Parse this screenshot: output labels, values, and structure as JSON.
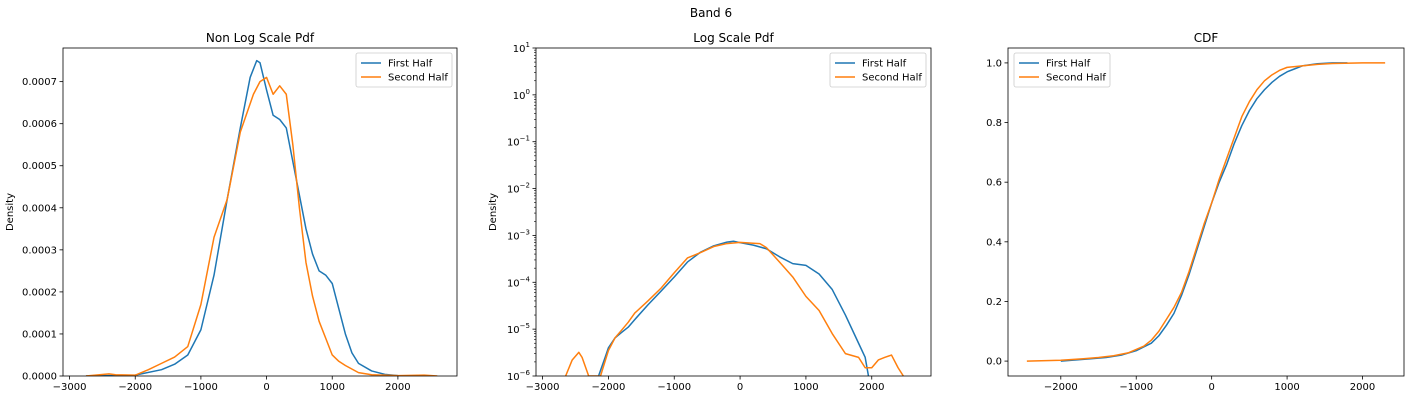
{
  "figure": {
    "suptitle": "Band 6"
  },
  "colors": {
    "first_half": "#1f77b4",
    "second_half": "#ff7f0e",
    "axes": "#000000",
    "legend_border": "#cccccc"
  },
  "chart_data": [
    {
      "type": "line",
      "title": "Non Log Scale Pdf",
      "xlabel": "",
      "ylabel": "Density",
      "xlim": [
        -3100,
        2900
      ],
      "ylim": [
        0,
        0.00078
      ],
      "yscale": "linear",
      "grid": false,
      "legend_position": "top-right",
      "xticks": [
        -3000,
        -2000,
        -1000,
        0,
        1000,
        2000
      ],
      "xtick_labels": [
        "−3000",
        "−2000",
        "−1000",
        "0",
        "1000",
        "2000"
      ],
      "yticks": [
        0,
        0.0001,
        0.0002,
        0.0003,
        0.0004,
        0.0005,
        0.0006,
        0.0007
      ],
      "ytick_labels": [
        "0.0000",
        "0.0001",
        "0.0002",
        "0.0003",
        "0.0004",
        "0.0005",
        "0.0006",
        "0.0007"
      ],
      "series": [
        {
          "name": "First Half",
          "color": "#1f77b4",
          "x": [
            -2750,
            -2000,
            -1600,
            -1400,
            -1200,
            -1000,
            -800,
            -600,
            -400,
            -250,
            -150,
            -100,
            0,
            100,
            200,
            300,
            400,
            500,
            600,
            700,
            800,
            900,
            1000,
            1100,
            1200,
            1300,
            1400,
            1600,
            1800,
            2000,
            2300
          ],
          "y": [
            0,
            2e-06,
            1.5e-05,
            2.8e-05,
            5e-05,
            0.00011,
            0.00024,
            0.00042,
            0.00059,
            0.00071,
            0.00075,
            0.000745,
            0.00068,
            0.00062,
            0.00061,
            0.00059,
            0.00051,
            0.00043,
            0.00035,
            0.00029,
            0.00025,
            0.00024,
            0.00022,
            0.00016,
            0.0001,
            5.5e-05,
            3e-05,
            1.2e-05,
            4e-06,
            1e-06,
            0
          ]
        },
        {
          "name": "Second Half",
          "color": "#ff7f0e",
          "x": [
            -2750,
            -2400,
            -2300,
            -2000,
            -1800,
            -1600,
            -1400,
            -1200,
            -1000,
            -800,
            -600,
            -400,
            -200,
            -100,
            0,
            100,
            200,
            300,
            400,
            500,
            600,
            700,
            800,
            900,
            1000,
            1100,
            1200,
            1400,
            1600,
            2000,
            2400,
            2600
          ],
          "y": [
            0,
            5e-06,
            3e-06,
            2e-06,
            1.5e-05,
            3e-05,
            4.5e-05,
            7e-05,
            0.00017,
            0.00033,
            0.00042,
            0.00058,
            0.00067,
            0.0007,
            0.00071,
            0.00067,
            0.00069,
            0.00067,
            0.00055,
            0.0004,
            0.00027,
            0.00019,
            0.00013,
            9e-05,
            5e-05,
            3.5e-05,
            2.5e-05,
            8e-06,
            3e-06,
            1e-06,
            2e-06,
            0
          ]
        }
      ]
    },
    {
      "type": "line",
      "title": "Log Scale Pdf",
      "xlabel": "",
      "ylabel": "Density",
      "xlim": [
        -3100,
        2900
      ],
      "ylim": [
        1e-06,
        10
      ],
      "yscale": "log",
      "grid": false,
      "legend_position": "top-right",
      "xticks": [
        -3000,
        -2000,
        -1000,
        0,
        1000,
        2000
      ],
      "xtick_labels": [
        "−3000",
        "−2000",
        "−1000",
        "0",
        "1000",
        "2000"
      ],
      "yticks": [
        1e-06,
        1e-05,
        0.0001,
        0.001,
        0.01,
        0.1,
        1,
        10
      ],
      "ytick_labels": [
        [
          "10",
          "−6"
        ],
        [
          "10",
          "−5"
        ],
        [
          "10",
          "−4"
        ],
        [
          "10",
          "−3"
        ],
        [
          "10",
          "−2"
        ],
        [
          "10",
          "−1"
        ],
        [
          "10",
          "0"
        ],
        [
          "10",
          "1"
        ]
      ],
      "series": [
        {
          "name": "First Half",
          "color": "#1f77b4",
          "x": [
            -2150,
            -2050,
            -2000,
            -1900,
            -1800,
            -1700,
            -1600,
            -1400,
            -1200,
            -1000,
            -800,
            -600,
            -400,
            -200,
            -100,
            0,
            200,
            400,
            600,
            800,
            1000,
            1200,
            1400,
            1600,
            1800,
            1900,
            1950
          ],
          "y": [
            1e-06,
            2.5e-06,
            4e-06,
            6.5e-06,
            8.5e-06,
            1.1e-05,
            1.6e-05,
            3.3e-05,
            6.5e-05,
            0.00013,
            0.00027,
            0.00044,
            0.0006,
            0.00072,
            0.00075,
            0.0007,
            0.00062,
            0.00052,
            0.00035,
            0.00025,
            0.00023,
            0.00015,
            7e-05,
            2e-05,
            5e-06,
            2.5e-06,
            1e-06
          ]
        },
        {
          "name": "Second Half",
          "color": "#ff7f0e",
          "x": [
            -2650,
            -2550,
            -2450,
            -2400,
            -2300,
            -2200,
            -2120,
            -2000,
            -1900,
            -1800,
            -1700,
            -1600,
            -1400,
            -1200,
            -1000,
            -800,
            -600,
            -400,
            -200,
            0,
            200,
            300,
            400,
            600,
            800,
            1000,
            1200,
            1400,
            1600,
            1800,
            1900,
            2000,
            2100,
            2200,
            2300,
            2400,
            2480
          ],
          "y": [
            1e-06,
            2.2e-06,
            3.2e-06,
            2.5e-06,
            1e-06,
            1e-06,
            1e-06,
            3.5e-06,
            6.5e-06,
            9.5e-06,
            1.4e-05,
            2.2e-05,
            4e-05,
            7.5e-05,
            0.00016,
            0.00033,
            0.00043,
            0.00058,
            0.00067,
            0.00071,
            0.00068,
            0.00067,
            0.00055,
            0.00027,
            0.00013,
            5e-05,
            2.5e-05,
            8e-06,
            3e-06,
            2.5e-06,
            1.5e-06,
            1.5e-06,
            2.2e-06,
            2.5e-06,
            2.8e-06,
            1.5e-06,
            1e-06
          ]
        }
      ]
    },
    {
      "type": "line",
      "title": "CDF",
      "xlabel": "",
      "ylabel": "",
      "xlim": [
        -2700,
        2550
      ],
      "ylim": [
        -0.05,
        1.05
      ],
      "yscale": "linear",
      "grid": false,
      "legend_position": "top-left",
      "xticks": [
        -2000,
        -1000,
        0,
        1000,
        2000
      ],
      "xtick_labels": [
        "−2000",
        "−1000",
        "0",
        "1000",
        "2000"
      ],
      "yticks": [
        0,
        0.2,
        0.4,
        0.6,
        0.8,
        1.0
      ],
      "ytick_labels": [
        "0.0",
        "0.2",
        "0.4",
        "0.6",
        "0.8",
        "1.0"
      ],
      "series": [
        {
          "name": "First Half",
          "color": "#1f77b4",
          "x": [
            -2000,
            -1600,
            -1400,
            -1200,
            -1000,
            -800,
            -700,
            -600,
            -500,
            -400,
            -300,
            -200,
            -100,
            0,
            100,
            200,
            300,
            400,
            500,
            600,
            700,
            800,
            900,
            1000,
            1100,
            1200,
            1400,
            1600,
            1800
          ],
          "y": [
            0.0,
            0.008,
            0.012,
            0.02,
            0.035,
            0.06,
            0.085,
            0.12,
            0.16,
            0.22,
            0.29,
            0.37,
            0.45,
            0.53,
            0.6,
            0.66,
            0.73,
            0.79,
            0.84,
            0.88,
            0.91,
            0.935,
            0.955,
            0.97,
            0.98,
            0.99,
            0.997,
            1.0,
            1.0
          ]
        },
        {
          "name": "Second Half",
          "color": "#ff7f0e",
          "x": [
            -2450,
            -2000,
            -1700,
            -1500,
            -1300,
            -1100,
            -900,
            -800,
            -700,
            -600,
            -500,
            -400,
            -300,
            -200,
            -100,
            0,
            100,
            200,
            300,
            400,
            500,
            600,
            700,
            800,
            900,
            1000,
            1200,
            1400,
            1600,
            2000,
            2300
          ],
          "y": [
            0.0,
            0.003,
            0.008,
            0.012,
            0.018,
            0.028,
            0.05,
            0.07,
            0.1,
            0.14,
            0.18,
            0.23,
            0.3,
            0.38,
            0.46,
            0.53,
            0.61,
            0.68,
            0.75,
            0.82,
            0.87,
            0.91,
            0.94,
            0.96,
            0.975,
            0.985,
            0.99,
            0.995,
            0.998,
            1.0,
            1.0
          ]
        }
      ]
    }
  ]
}
